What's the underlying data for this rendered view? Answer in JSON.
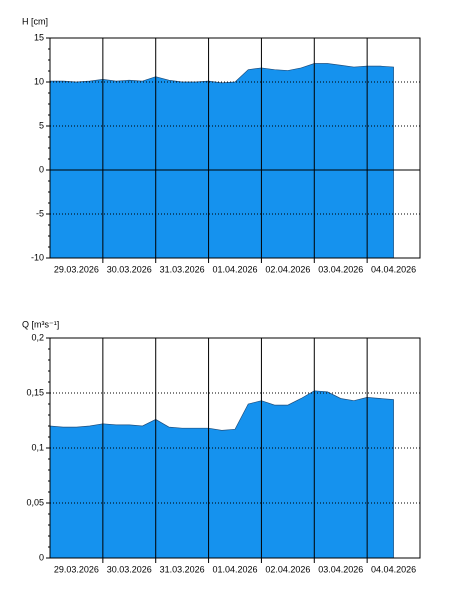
{
  "chart_data": [
    {
      "type": "area",
      "title": "H [cm]",
      "color": "#1592ee",
      "categories": [
        "29.03.2026",
        "30.03.2026",
        "31.03.2026",
        "01.04.2026",
        "02.04.2026",
        "03.04.2026",
        "04.04.2026"
      ],
      "xlim": [
        0,
        7
      ],
      "x": [
        0,
        0.25,
        0.5,
        0.75,
        1,
        1.25,
        1.5,
        1.75,
        2,
        2.25,
        2.5,
        2.75,
        3,
        3.25,
        3.5,
        3.75,
        4,
        4.25,
        4.5,
        4.75,
        5,
        5.25,
        5.5,
        5.75,
        6,
        6.25,
        6.5
      ],
      "values": [
        10.1,
        10.1,
        10.0,
        10.1,
        10.3,
        10.1,
        10.2,
        10.1,
        10.6,
        10.2,
        10.0,
        10.0,
        10.1,
        9.9,
        10.0,
        11.4,
        11.6,
        11.4,
        11.3,
        11.6,
        12.1,
        12.1,
        11.9,
        11.7,
        11.8,
        11.8,
        11.7
      ],
      "ylim": [
        -10,
        15
      ],
      "yticks": [
        -10,
        -5,
        0,
        5,
        10,
        15
      ],
      "grid": true
    },
    {
      "type": "area",
      "title": "Q [m³s⁻¹]",
      "color": "#1592ee",
      "categories": [
        "29.03.2026",
        "30.03.2026",
        "31.03.2026",
        "01.04.2026",
        "02.04.2026",
        "03.04.2026",
        "04.04.2026"
      ],
      "xlim": [
        0,
        7
      ],
      "x": [
        0,
        0.25,
        0.5,
        0.75,
        1,
        1.25,
        1.5,
        1.75,
        2,
        2.25,
        2.5,
        2.75,
        3,
        3.25,
        3.5,
        3.75,
        4,
        4.25,
        4.5,
        4.75,
        5,
        5.25,
        5.5,
        5.75,
        6,
        6.25,
        6.5
      ],
      "values": [
        0.12,
        0.119,
        0.119,
        0.12,
        0.122,
        0.121,
        0.121,
        0.12,
        0.126,
        0.119,
        0.118,
        0.118,
        0.118,
        0.116,
        0.117,
        0.14,
        0.143,
        0.139,
        0.139,
        0.145,
        0.152,
        0.151,
        0.145,
        0.143,
        0.146,
        0.145,
        0.144
      ],
      "ylim": [
        0,
        0.2
      ],
      "yticks": [
        0,
        {
          "value": 0.05,
          "label": "0,05"
        },
        {
          "value": 0.1,
          "label": "0,1"
        },
        {
          "value": 0.15,
          "label": "0,15"
        },
        {
          "value": 0.2,
          "label": "0,2"
        }
      ],
      "grid": true
    }
  ]
}
